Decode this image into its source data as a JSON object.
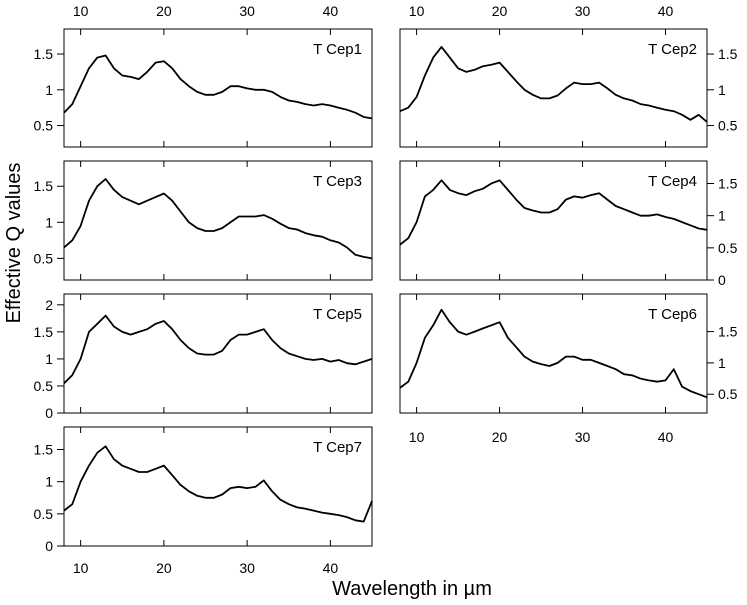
{
  "chart_data": {
    "type": "line",
    "ylabel": "Effective Q values",
    "xlabel": "Wavelength in µm",
    "xlim": [
      8,
      45
    ],
    "xticks": [
      10,
      20,
      30,
      40
    ],
    "line_color": "#000000",
    "panels": [
      {
        "name": "T Cep1",
        "ylim": [
          0.2,
          1.85
        ],
        "yticks": [
          0.5,
          1,
          1.5
        ],
        "ytick_labels": [
          "0.5",
          "1",
          "1.5"
        ],
        "yaxis": "left",
        "x": [
          8,
          9,
          10,
          11,
          12,
          13,
          14,
          15,
          16,
          17,
          18,
          19,
          20,
          21,
          22,
          23,
          24,
          25,
          26,
          27,
          28,
          29,
          30,
          31,
          32,
          33,
          34,
          35,
          36,
          37,
          38,
          39,
          40,
          41,
          42,
          43,
          44,
          45
        ],
        "y": [
          0.68,
          0.8,
          1.05,
          1.3,
          1.45,
          1.48,
          1.3,
          1.2,
          1.18,
          1.15,
          1.25,
          1.38,
          1.4,
          1.3,
          1.15,
          1.05,
          0.97,
          0.93,
          0.93,
          0.97,
          1.05,
          1.05,
          1.02,
          1.0,
          1.0,
          0.97,
          0.9,
          0.85,
          0.83,
          0.8,
          0.78,
          0.8,
          0.78,
          0.75,
          0.72,
          0.68,
          0.62,
          0.6
        ]
      },
      {
        "name": "T Cep2",
        "ylim": [
          0.2,
          1.85
        ],
        "yticks": [
          0.5,
          1,
          1.5
        ],
        "ytick_labels": [
          "0.5",
          "1",
          "1.5"
        ],
        "yaxis": "right",
        "x": [
          8,
          9,
          10,
          11,
          12,
          13,
          14,
          15,
          16,
          17,
          18,
          19,
          20,
          21,
          22,
          23,
          24,
          25,
          26,
          27,
          28,
          29,
          30,
          31,
          32,
          33,
          34,
          35,
          36,
          37,
          38,
          39,
          40,
          41,
          42,
          43,
          44,
          45
        ],
        "y": [
          0.7,
          0.75,
          0.9,
          1.2,
          1.45,
          1.6,
          1.45,
          1.3,
          1.25,
          1.28,
          1.33,
          1.35,
          1.38,
          1.25,
          1.12,
          1.0,
          0.93,
          0.88,
          0.88,
          0.92,
          1.02,
          1.1,
          1.08,
          1.08,
          1.1,
          1.02,
          0.93,
          0.88,
          0.85,
          0.8,
          0.78,
          0.75,
          0.72,
          0.7,
          0.65,
          0.58,
          0.65,
          0.55
        ]
      },
      {
        "name": "T Cep3",
        "ylim": [
          0.2,
          1.85
        ],
        "yticks": [
          0.5,
          1,
          1.5
        ],
        "ytick_labels": [
          "0.5",
          "1",
          "1.5"
        ],
        "yaxis": "left",
        "x": [
          8,
          9,
          10,
          11,
          12,
          13,
          14,
          15,
          16,
          17,
          18,
          19,
          20,
          21,
          22,
          23,
          24,
          25,
          26,
          27,
          28,
          29,
          30,
          31,
          32,
          33,
          34,
          35,
          36,
          37,
          38,
          39,
          40,
          41,
          42,
          43,
          44,
          45
        ],
        "y": [
          0.65,
          0.75,
          0.95,
          1.3,
          1.5,
          1.6,
          1.45,
          1.35,
          1.3,
          1.25,
          1.3,
          1.35,
          1.4,
          1.3,
          1.15,
          1.0,
          0.92,
          0.88,
          0.88,
          0.92,
          1.0,
          1.08,
          1.08,
          1.08,
          1.1,
          1.05,
          0.98,
          0.92,
          0.9,
          0.85,
          0.82,
          0.8,
          0.75,
          0.72,
          0.65,
          0.55,
          0.52,
          0.5
        ]
      },
      {
        "name": "T Cep4",
        "ylim": [
          0,
          1.85
        ],
        "yticks": [
          0,
          0.5,
          1,
          1.5
        ],
        "ytick_labels": [
          "0",
          "0.5",
          "1",
          "1.5"
        ],
        "yaxis": "right",
        "x": [
          8,
          9,
          10,
          11,
          12,
          13,
          14,
          15,
          16,
          17,
          18,
          19,
          20,
          21,
          22,
          23,
          24,
          25,
          26,
          27,
          28,
          29,
          30,
          31,
          32,
          33,
          34,
          35,
          36,
          37,
          38,
          39,
          40,
          41,
          42,
          43,
          44,
          45
        ],
        "y": [
          0.55,
          0.65,
          0.9,
          1.3,
          1.4,
          1.55,
          1.4,
          1.35,
          1.32,
          1.38,
          1.42,
          1.5,
          1.55,
          1.4,
          1.25,
          1.12,
          1.08,
          1.05,
          1.05,
          1.1,
          1.25,
          1.3,
          1.28,
          1.32,
          1.35,
          1.25,
          1.15,
          1.1,
          1.05,
          1.0,
          1.0,
          1.02,
          0.98,
          0.95,
          0.9,
          0.85,
          0.8,
          0.78
        ]
      },
      {
        "name": "T Cep5",
        "ylim": [
          0,
          2.2
        ],
        "yticks": [
          0,
          0.5,
          1,
          1.5,
          2
        ],
        "ytick_labels": [
          "0",
          "0.5",
          "1",
          "1.5",
          "2"
        ],
        "yaxis": "left",
        "x": [
          8,
          9,
          10,
          11,
          12,
          13,
          14,
          15,
          16,
          17,
          18,
          19,
          20,
          21,
          22,
          23,
          24,
          25,
          26,
          27,
          28,
          29,
          30,
          31,
          32,
          33,
          34,
          35,
          36,
          37,
          38,
          39,
          40,
          41,
          42,
          43,
          44,
          45
        ],
        "y": [
          0.55,
          0.7,
          1.0,
          1.5,
          1.65,
          1.8,
          1.6,
          1.5,
          1.45,
          1.5,
          1.55,
          1.65,
          1.7,
          1.55,
          1.35,
          1.2,
          1.1,
          1.08,
          1.08,
          1.15,
          1.35,
          1.45,
          1.45,
          1.5,
          1.55,
          1.35,
          1.2,
          1.1,
          1.05,
          1.0,
          0.98,
          1.0,
          0.95,
          0.98,
          0.92,
          0.9,
          0.95,
          1.0
        ]
      },
      {
        "name": "T Cep6",
        "ylim": [
          0.2,
          2.1
        ],
        "yticks": [
          0.5,
          1,
          1.5
        ],
        "ytick_labels": [
          "0.5",
          "1",
          "1.5"
        ],
        "yaxis": "right",
        "x": [
          8,
          9,
          10,
          11,
          12,
          13,
          14,
          15,
          16,
          17,
          18,
          19,
          20,
          21,
          22,
          23,
          24,
          25,
          26,
          27,
          28,
          29,
          30,
          31,
          32,
          33,
          34,
          35,
          36,
          37,
          38,
          39,
          40,
          41,
          42,
          43,
          44,
          45
        ],
        "y": [
          0.6,
          0.7,
          1.0,
          1.4,
          1.6,
          1.85,
          1.65,
          1.5,
          1.45,
          1.5,
          1.55,
          1.6,
          1.65,
          1.4,
          1.25,
          1.1,
          1.02,
          0.98,
          0.95,
          1.0,
          1.1,
          1.1,
          1.05,
          1.05,
          1.0,
          0.95,
          0.9,
          0.82,
          0.8,
          0.75,
          0.72,
          0.7,
          0.72,
          0.9,
          0.62,
          0.55,
          0.5,
          0.45
        ]
      },
      {
        "name": "T Cep7",
        "ylim": [
          0,
          1.85
        ],
        "yticks": [
          0,
          0.5,
          1,
          1.5
        ],
        "ytick_labels": [
          "0",
          "0.5",
          "1",
          "1.5"
        ],
        "yaxis": "left",
        "x": [
          8,
          9,
          10,
          11,
          12,
          13,
          14,
          15,
          16,
          17,
          18,
          19,
          20,
          21,
          22,
          23,
          24,
          25,
          26,
          27,
          28,
          29,
          30,
          31,
          32,
          33,
          34,
          35,
          36,
          37,
          38,
          39,
          40,
          41,
          42,
          43,
          44,
          45
        ],
        "y": [
          0.55,
          0.65,
          1.0,
          1.25,
          1.45,
          1.55,
          1.35,
          1.25,
          1.2,
          1.15,
          1.15,
          1.2,
          1.25,
          1.1,
          0.95,
          0.85,
          0.78,
          0.75,
          0.75,
          0.8,
          0.9,
          0.92,
          0.9,
          0.92,
          1.02,
          0.85,
          0.72,
          0.65,
          0.6,
          0.58,
          0.55,
          0.52,
          0.5,
          0.48,
          0.45,
          0.4,
          0.38,
          0.7
        ]
      }
    ]
  }
}
